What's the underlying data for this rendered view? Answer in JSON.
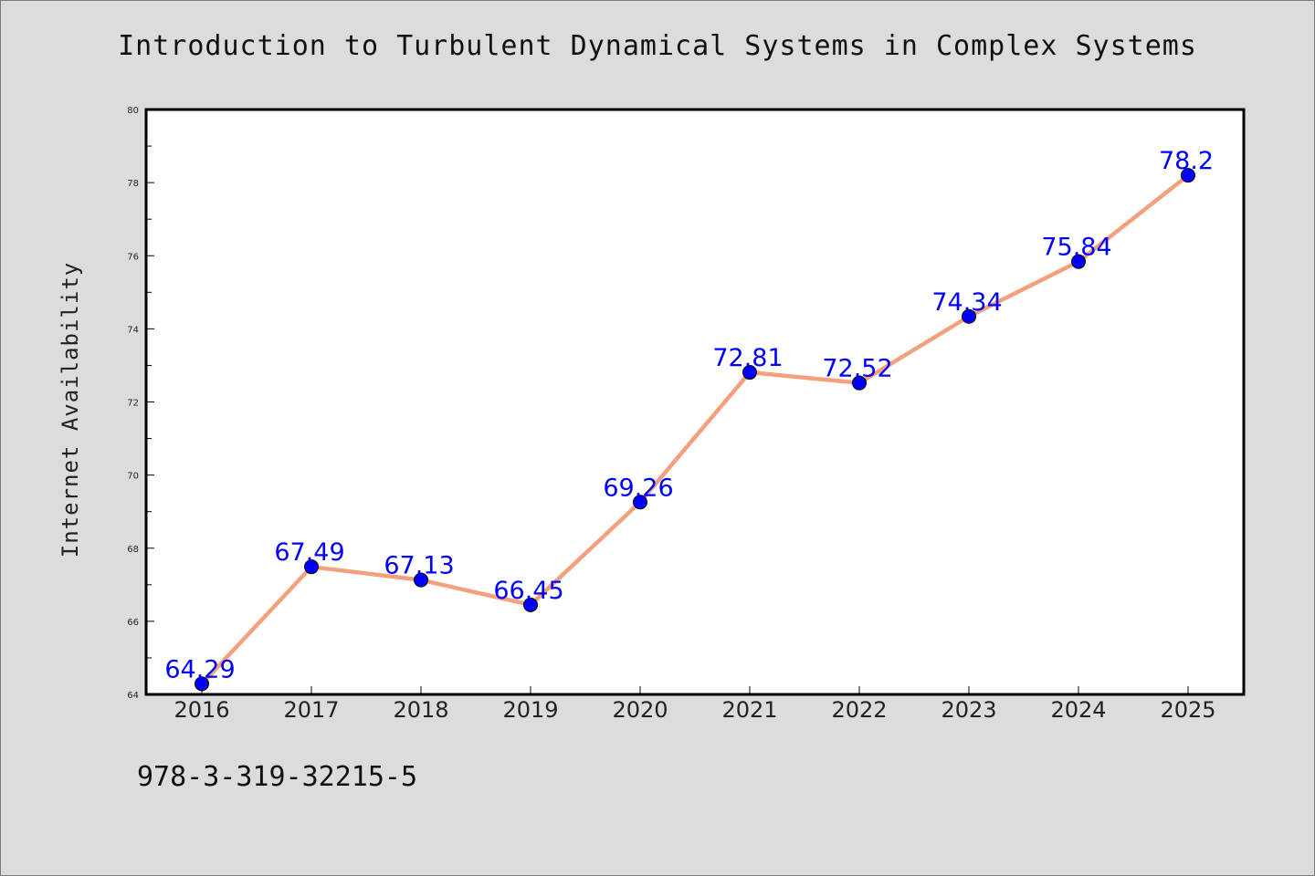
{
  "colors": {
    "background": "#dcdcdc",
    "plot_background": "#ffffff",
    "line": "#f4a07c",
    "marker": "#0000ff",
    "data_label": "#0000ff"
  },
  "chart_data": {
    "type": "line",
    "title": "Introduction to Turbulent Dynamical Systems in Complex Systems",
    "xlabel": "",
    "ylabel": "Internet Availability",
    "categories": [
      "2016",
      "2017",
      "2018",
      "2019",
      "2020",
      "2021",
      "2022",
      "2023",
      "2024",
      "2025"
    ],
    "series": [
      {
        "values": [
          64.29,
          67.49,
          67.13,
          66.45,
          69.26,
          72.81,
          72.52,
          74.34,
          75.84,
          78.2
        ],
        "labels": [
          "64.29",
          "67.49",
          "67.13",
          "66.45",
          "69.26",
          "72.81",
          "72.52",
          "74.34",
          "75.84",
          "78.2"
        ]
      }
    ],
    "ylim": [
      64,
      80
    ],
    "yticks": [
      "64",
      "66",
      "68",
      "70",
      "72",
      "74",
      "76",
      "78",
      "80"
    ],
    "grid": false,
    "legend": "none"
  },
  "footer": {
    "code": "978-3-319-32215-5"
  }
}
